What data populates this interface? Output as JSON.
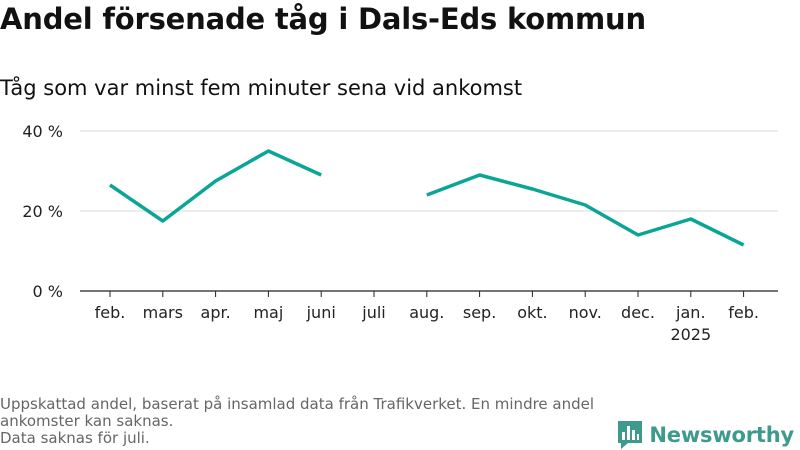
{
  "chart_data": {
    "type": "line",
    "title": "Andel försenade tåg i Dals-Eds kommun",
    "subtitle": "Tåg som var minst fem minuter sena vid ankomst",
    "categories": [
      "feb.",
      "mars",
      "apr.",
      "maj",
      "juni",
      "juli",
      "aug.",
      "sep.",
      "okt.",
      "nov.",
      "dec.",
      "jan.",
      "feb."
    ],
    "year_labels": [
      "",
      "",
      "",
      "",
      "",
      "",
      "",
      "",
      "",
      "",
      "",
      "2025",
      ""
    ],
    "series": [
      {
        "values": [
          26.5,
          17.5,
          27.5,
          35.0,
          29.0,
          null,
          24.0,
          29.0,
          25.5,
          21.5,
          14.0,
          18.0,
          11.5
        ]
      }
    ],
    "ylim": [
      0,
      40
    ],
    "yticks": [
      0,
      20,
      40
    ],
    "ytick_labels": [
      "0 %",
      "20 %",
      "40 %"
    ],
    "grid": true,
    "line_color": "#0aa596"
  },
  "footnote": {
    "line1": "Uppskattad andel, baserat på insamlad data från Trafikverket. En mindre andel ankomster kan saknas.",
    "line2": "Data saknas för juli."
  },
  "brand": {
    "name": "Newsworthy",
    "color": "#3d9a8c",
    "icon": "bar-chart-speech-icon"
  }
}
